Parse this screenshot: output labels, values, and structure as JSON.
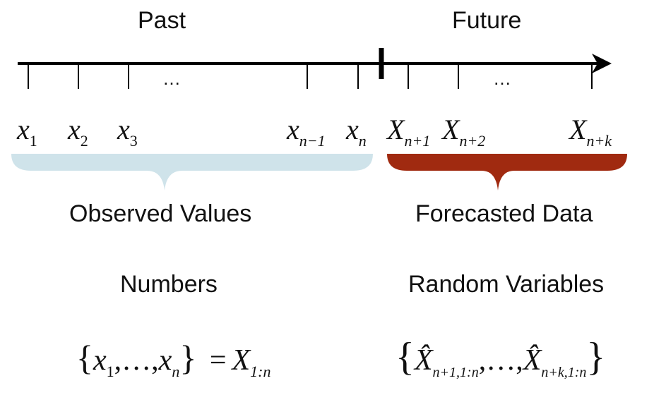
{
  "headings": {
    "past": "Past",
    "future": "Future"
  },
  "timeline": {
    "ellipsis_left": "…",
    "ellipsis_right": "…",
    "observed": [
      {
        "base": "x",
        "sub": "1"
      },
      {
        "base": "x",
        "sub": "2"
      },
      {
        "base": "x",
        "sub": "3"
      },
      {
        "base": "x",
        "sub": "n−1"
      },
      {
        "base": "x",
        "sub": "n"
      }
    ],
    "forecast": [
      {
        "base": "X",
        "sub": "n+1"
      },
      {
        "base": "X",
        "sub": "n+2"
      },
      {
        "base": "X",
        "sub": "n+k"
      }
    ]
  },
  "groups": {
    "observed_label": "Observed Values",
    "forecast_label": "Forecasted Data",
    "observed_kind": "Numbers",
    "forecast_kind": "Random Variables",
    "observed_color": "#cfe3ea",
    "forecast_color": "#a02a10"
  },
  "formulas": {
    "observed": {
      "open": "{",
      "first": "x",
      "first_sub": "1",
      "mid": ",…,",
      "last": "x",
      "last_sub": "n",
      "close": "}",
      "equals": "=",
      "rhs": "X",
      "rhs_sub": "1:n"
    },
    "forecast": {
      "open": "{",
      "first": "X̂",
      "first_sub": "n+1,1:n",
      "mid": ",…,",
      "last": "X̂",
      "last_sub": "n+k,1:n",
      "close": "}"
    }
  }
}
